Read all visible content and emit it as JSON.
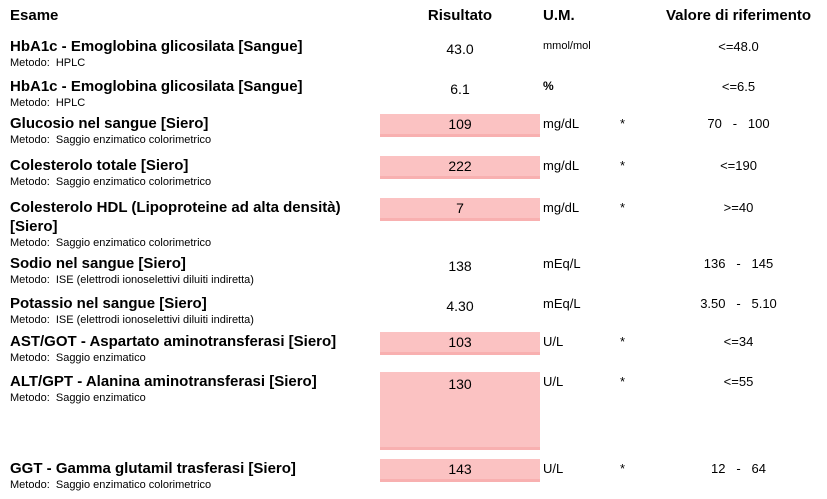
{
  "colors": {
    "highlight_background": "#fbc2c2",
    "highlight_edge": "#f8b0b0",
    "text": "#000000"
  },
  "header": {
    "exam": "Esame",
    "result": "Risultato",
    "unit": "U.M.",
    "reference": "Valore di riferimento"
  },
  "rows": [
    {
      "name": "HbA1c - Emoglobina glicosilata [Sangue]",
      "method": "Metodo:  HPLC",
      "result": "43.0",
      "unit": "mmol/mol",
      "flag": "",
      "reference": "<=48.0",
      "highlighted": false
    },
    {
      "name": "HbA1c - Emoglobina glicosilata [Sangue]",
      "method": "Metodo:  HPLC",
      "result": "6.1",
      "unit": "%",
      "flag": "",
      "reference": "<=6.5",
      "highlighted": false
    },
    {
      "name": "Glucosio nel sangue [Siero]",
      "method": "Metodo:  Saggio enzimatico colorimetrico",
      "result": "109",
      "unit": "mg/dL",
      "flag": "*",
      "reference": "70   -   100",
      "highlighted": true
    },
    {
      "name": "Colesterolo totale [Siero]",
      "method": "Metodo:  Saggio enzimatico colorimetrico",
      "result": "222",
      "unit": "mg/dL",
      "flag": "*",
      "reference": "<=190",
      "highlighted": true
    },
    {
      "name": "Colesterolo HDL (Lipoproteine ad alta densità) [Siero]",
      "method": "Metodo:  Saggio enzimatico colorimetrico",
      "result": "7",
      "unit": "mg/dL",
      "flag": "*",
      "reference": ">=40",
      "highlighted": true
    },
    {
      "name": "Sodio nel sangue [Siero]",
      "method": "Metodo:  ISE (elettrodi ionoselettivi diluiti indiretta)",
      "result": "138",
      "unit": "mEq/L",
      "flag": "",
      "reference": "136   -   145",
      "highlighted": false
    },
    {
      "name": "Potassio nel sangue [Siero]",
      "method": "Metodo:  ISE (elettrodi ionoselettivi diluiti indiretta)",
      "result": "4.30",
      "unit": "mEq/L",
      "flag": "",
      "reference": "3.50   -   5.10",
      "highlighted": false
    },
    {
      "name": "AST/GOT - Aspartato aminotransferasi [Siero]",
      "method": "Metodo:  Saggio enzimatico",
      "result": "103",
      "unit": "U/L",
      "flag": "*",
      "reference": "<=34",
      "highlighted": true
    },
    {
      "name": "ALT/GPT - Alanina aminotransferasi [Siero]",
      "method": "Metodo:  Saggio enzimatico",
      "result": "130",
      "unit": "U/L",
      "flag": "*",
      "reference": "<=55",
      "highlighted": true
    },
    {
      "name": "GGT - Gamma glutamil trasferasi [Siero]",
      "method": "Metodo:  Saggio enzimatico colorimetrico",
      "result": "143",
      "unit": "U/L",
      "flag": "*",
      "reference": "12   -   64",
      "highlighted": true
    }
  ]
}
